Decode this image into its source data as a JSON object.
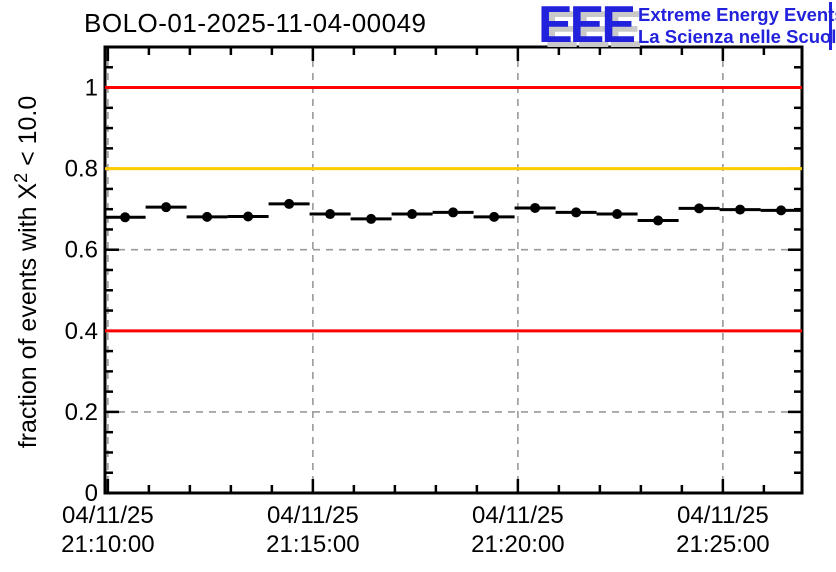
{
  "title": "BOLO-01-2025-11-04-00049",
  "logo": {
    "acronym": "EEE",
    "tagline1": "Extreme Energy Events",
    "tagline2": "La Scienza nelle Scuole",
    "blue": "#2222dd",
    "shadow_gray": "#c9c9c9"
  },
  "y_axis": {
    "label_prefix": "fraction of events with X",
    "label_sup": "2",
    "label_suffix": " < 10.0"
  },
  "chart_data": {
    "type": "scatter",
    "title": "BOLO-01-2025-11-04-00049",
    "ylabel": "fraction of events with X² < 10.0",
    "ylim": [
      0,
      1.1
    ],
    "yticks": [
      {
        "value": 0,
        "label": "0"
      },
      {
        "value": 0.2,
        "label": "0.2"
      },
      {
        "value": 0.4,
        "label": "0.4"
      },
      {
        "value": 0.6,
        "label": "0.6"
      },
      {
        "value": 0.8,
        "label": "0.8"
      },
      {
        "value": 1,
        "label": "1"
      }
    ],
    "y_minor_step": 0.05,
    "grid": true,
    "x_unit": "minutes after first x tick",
    "xlim": [
      -0.07,
      16.93
    ],
    "x_minor_step_min": 1,
    "xticks": [
      {
        "minute": 0,
        "date": "04/11/25",
        "time": "21:10:00"
      },
      {
        "minute": 5,
        "date": "04/11/25",
        "time": "21:15:00"
      },
      {
        "minute": 10,
        "date": "04/11/25",
        "time": "21:20:00"
      },
      {
        "minute": 15,
        "date": "04/11/25",
        "time": "21:25:00"
      }
    ],
    "reference_lines": [
      {
        "y": 1.0,
        "color": "#ff0000"
      },
      {
        "y": 0.8,
        "color": "#ffcc00"
      },
      {
        "y": 0.4,
        "color": "#ff0000"
      }
    ],
    "series": [
      {
        "name": "fraction of events with chi2 < 10.0",
        "marker": "filled-circle",
        "color": "#000000",
        "x_error_halfwidth_min": 0.5,
        "points": [
          {
            "t_min": 0.42,
            "value": 0.68
          },
          {
            "t_min": 1.42,
            "value": 0.705
          },
          {
            "t_min": 2.42,
            "value": 0.681
          },
          {
            "t_min": 3.42,
            "value": 0.682
          },
          {
            "t_min": 4.42,
            "value": 0.713
          },
          {
            "t_min": 5.42,
            "value": 0.688
          },
          {
            "t_min": 6.42,
            "value": 0.676
          },
          {
            "t_min": 7.42,
            "value": 0.688
          },
          {
            "t_min": 8.42,
            "value": 0.692
          },
          {
            "t_min": 9.42,
            "value": 0.681
          },
          {
            "t_min": 10.42,
            "value": 0.703
          },
          {
            "t_min": 11.42,
            "value": 0.692
          },
          {
            "t_min": 12.42,
            "value": 0.688
          },
          {
            "t_min": 13.42,
            "value": 0.672
          },
          {
            "t_min": 14.42,
            "value": 0.702
          },
          {
            "t_min": 15.42,
            "value": 0.699
          },
          {
            "t_min": 16.42,
            "value": 0.697
          }
        ]
      }
    ]
  }
}
